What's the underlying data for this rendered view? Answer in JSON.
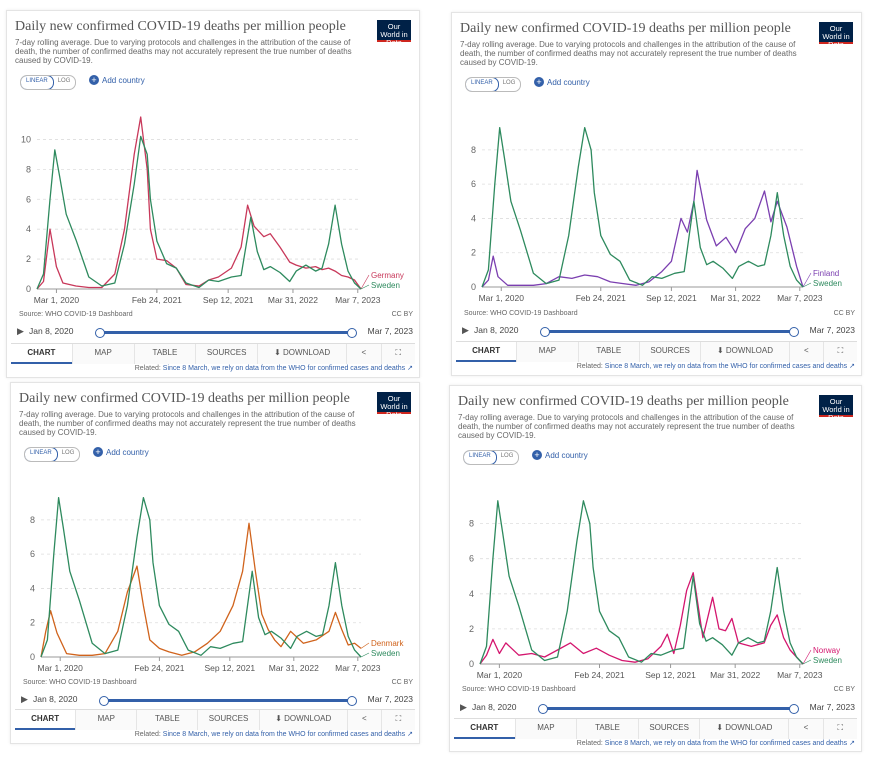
{
  "common": {
    "title": "Daily new confirmed COVID-19 deaths per million people",
    "subtitle": "7-day rolling average. Due to varying protocols and challenges in the attribution of the cause of death, the number of confirmed deaths may not accurately represent the true number of deaths caused by COVID-19.",
    "logo": "Our World in Data",
    "scale_linear": "LINEAR",
    "scale_log": "LOG",
    "add_country": "Add country",
    "source": "Source: WHO COVID-19 Dashboard",
    "license": "CC BY",
    "timeline_start": "Jan 8, 2020",
    "timeline_end": "Mar 7, 2023",
    "tabs": [
      "CHART",
      "MAP",
      "TABLE",
      "SOURCES",
      "DOWNLOAD"
    ],
    "related_label": "Related:",
    "related_link": "Since 8 March, we rely on data from the WHO for confirmed cases and deaths",
    "colors": {
      "sweden": "#2e8a5e",
      "germany": "#c8385a",
      "finland": "#7b3fb0",
      "denmark": "#d0631c",
      "norway": "#d4166e",
      "accent": "#3360a9"
    },
    "icons": {
      "play": "play-icon",
      "download": "download-icon",
      "share": "share-icon",
      "expand": "expand-icon",
      "external": "external-link-icon",
      "plus": "plus-icon"
    }
  },
  "chart_data": [
    {
      "type": "line",
      "title": "Daily new confirmed COVID-19 deaths per million people",
      "x_ticks": [
        "Mar 1, 2020",
        "Feb 24, 2021",
        "Sep 12, 2021",
        "Mar 31, 2022",
        "Mar 7, 2023"
      ],
      "y_ticks": [
        0,
        2,
        4,
        6,
        8,
        10
      ],
      "ylim": [
        0,
        11.5
      ],
      "series": [
        {
          "name": "Sweden",
          "color": "#2e8a5e",
          "x": [
            0,
            0.02,
            0.04,
            0.055,
            0.07,
            0.09,
            0.12,
            0.16,
            0.2,
            0.24,
            0.27,
            0.3,
            0.32,
            0.34,
            0.35,
            0.37,
            0.4,
            0.43,
            0.46,
            0.5,
            0.53,
            0.56,
            0.6,
            0.63,
            0.66,
            0.68,
            0.7,
            0.72,
            0.75,
            0.78,
            0.8,
            0.83,
            0.86,
            0.88,
            0.9,
            0.92,
            0.94,
            0.96,
            0.98,
            1
          ],
          "y": [
            0,
            1,
            6,
            9.3,
            7.5,
            5,
            3.3,
            0.8,
            0.2,
            0.4,
            3,
            7,
            10.2,
            9,
            6,
            3.2,
            1.7,
            1.4,
            0.4,
            0.1,
            0.6,
            0.5,
            0.8,
            0.9,
            4.8,
            2.5,
            1.3,
            1.5,
            1.1,
            0.5,
            1.2,
            1.6,
            1.2,
            1.4,
            3,
            5.6,
            3,
            1.2,
            0.4,
            0
          ]
        },
        {
          "name": "Germany",
          "color": "#c8385a",
          "x": [
            0,
            0.02,
            0.04,
            0.06,
            0.08,
            0.12,
            0.16,
            0.2,
            0.24,
            0.27,
            0.3,
            0.32,
            0.34,
            0.35,
            0.37,
            0.4,
            0.43,
            0.46,
            0.5,
            0.53,
            0.56,
            0.6,
            0.63,
            0.65,
            0.67,
            0.7,
            0.72,
            0.75,
            0.78,
            0.8,
            0.83,
            0.86,
            0.88,
            0.9,
            0.92,
            0.94,
            0.96,
            0.98,
            1
          ],
          "y": [
            0,
            0.5,
            4,
            1.5,
            0.4,
            0.2,
            0.1,
            0.1,
            1,
            4,
            9,
            11.5,
            8,
            4,
            2,
            1.9,
            1.4,
            0.3,
            0.2,
            0.6,
            0.8,
            1.4,
            2.8,
            5.6,
            4.2,
            3.5,
            3.7,
            2.8,
            1.8,
            1.6,
            1.4,
            1.5,
            1.3,
            1.4,
            1.2,
            0.9,
            0.8,
            0.6,
            0
          ]
        }
      ]
    },
    {
      "type": "line",
      "title": "Daily new confirmed COVID-19 deaths per million people",
      "x_ticks": [
        "Mar 1, 2020",
        "Feb 24, 2021",
        "Sep 12, 2021",
        "Mar 31, 2022",
        "Mar 7, 2023"
      ],
      "y_ticks": [
        0,
        2,
        4,
        6,
        8
      ],
      "ylim": [
        0,
        9.8
      ],
      "series": [
        {
          "name": "Sweden",
          "color": "#2e8a5e",
          "x": [
            0,
            0.02,
            0.04,
            0.055,
            0.07,
            0.09,
            0.12,
            0.16,
            0.2,
            0.24,
            0.27,
            0.3,
            0.32,
            0.34,
            0.35,
            0.37,
            0.4,
            0.43,
            0.46,
            0.5,
            0.53,
            0.56,
            0.6,
            0.63,
            0.66,
            0.68,
            0.7,
            0.72,
            0.75,
            0.78,
            0.8,
            0.83,
            0.86,
            0.88,
            0.9,
            0.92,
            0.94,
            0.96,
            0.98,
            1
          ],
          "y": [
            0,
            1,
            6,
            9.3,
            7.5,
            5,
            3.3,
            0.8,
            0.2,
            0.4,
            3,
            7,
            9.3,
            8,
            5.5,
            3,
            1.9,
            1.5,
            0.4,
            0.1,
            0.6,
            0.5,
            0.8,
            0.9,
            5,
            2.3,
            1.3,
            1.5,
            1.1,
            0.5,
            1.2,
            1.5,
            1.2,
            1.3,
            3,
            5.5,
            3,
            1.2,
            0.4,
            0
          ]
        },
        {
          "name": "Finland",
          "color": "#7b3fb0",
          "x": [
            0,
            0.02,
            0.035,
            0.05,
            0.08,
            0.12,
            0.16,
            0.2,
            0.24,
            0.28,
            0.32,
            0.36,
            0.4,
            0.44,
            0.48,
            0.52,
            0.56,
            0.59,
            0.62,
            0.64,
            0.66,
            0.67,
            0.7,
            0.73,
            0.76,
            0.79,
            0.82,
            0.85,
            0.88,
            0.9,
            0.92,
            0.95,
            0.98,
            1
          ],
          "y": [
            0,
            0.4,
            1.8,
            0.6,
            0.1,
            0.1,
            0.1,
            0.2,
            0.6,
            0.5,
            0.7,
            0.6,
            0.3,
            0.2,
            0.1,
            0.3,
            0.9,
            1.5,
            4,
            3.2,
            5,
            6.8,
            3.9,
            2.4,
            2.9,
            2,
            3.4,
            4,
            5.6,
            3.8,
            5,
            3.5,
            1.2,
            0
          ]
        }
      ]
    },
    {
      "type": "line",
      "title": "Daily new confirmed COVID-19 deaths per million people",
      "x_ticks": [
        "Mar 1, 2020",
        "Feb 24, 2021",
        "Sep 12, 2021",
        "Mar 31, 2022",
        "Mar 7, 2023"
      ],
      "y_ticks": [
        0,
        2,
        4,
        6,
        8
      ],
      "ylim": [
        0,
        9.8
      ],
      "series": [
        {
          "name": "Sweden",
          "color": "#2e8a5e",
          "x": [
            0,
            0.02,
            0.04,
            0.055,
            0.07,
            0.09,
            0.12,
            0.16,
            0.2,
            0.24,
            0.27,
            0.3,
            0.32,
            0.34,
            0.35,
            0.37,
            0.4,
            0.43,
            0.46,
            0.5,
            0.53,
            0.56,
            0.6,
            0.63,
            0.66,
            0.68,
            0.7,
            0.72,
            0.75,
            0.78,
            0.8,
            0.83,
            0.86,
            0.88,
            0.9,
            0.92,
            0.94,
            0.96,
            0.98,
            1
          ],
          "y": [
            0,
            1,
            6,
            9.3,
            7.5,
            5,
            3.3,
            0.8,
            0.2,
            0.4,
            3,
            7,
            9.3,
            8,
            5.5,
            3,
            1.9,
            1.5,
            0.4,
            0.1,
            0.6,
            0.5,
            0.8,
            0.9,
            5,
            2.3,
            1.3,
            1.5,
            1.1,
            0.5,
            1.2,
            1.5,
            1.2,
            1.3,
            3,
            5.5,
            3,
            1.2,
            0.4,
            0
          ]
        },
        {
          "name": "Denmark",
          "color": "#d0631c",
          "x": [
            0,
            0.015,
            0.03,
            0.05,
            0.08,
            0.12,
            0.16,
            0.2,
            0.24,
            0.27,
            0.3,
            0.32,
            0.34,
            0.37,
            0.4,
            0.44,
            0.48,
            0.52,
            0.56,
            0.6,
            0.63,
            0.65,
            0.67,
            0.69,
            0.71,
            0.73,
            0.75,
            0.78,
            0.82,
            0.86,
            0.9,
            0.92,
            0.94,
            0.96,
            0.98,
            1
          ],
          "y": [
            0,
            1.5,
            2.7,
            1.4,
            0.2,
            0.1,
            0.1,
            0.2,
            1.5,
            3.8,
            5.3,
            3,
            1,
            0.5,
            0.3,
            0.1,
            0.3,
            0.8,
            1.5,
            3,
            5,
            7.8,
            5,
            2.5,
            1.6,
            1,
            0.6,
            1.5,
            0.8,
            1,
            1.5,
            2.6,
            1.6,
            0.7,
            0.8,
            0.5
          ]
        }
      ]
    },
    {
      "type": "line",
      "title": "Daily new confirmed COVID-19 deaths per million people",
      "x_ticks": [
        "Mar 1, 2020",
        "Feb 24, 2021",
        "Sep 12, 2021",
        "Mar 31, 2022",
        "Mar 7, 2023"
      ],
      "y_ticks": [
        0,
        2,
        4,
        6,
        8
      ],
      "ylim": [
        0,
        9.8
      ],
      "series": [
        {
          "name": "Sweden",
          "color": "#2e8a5e",
          "x": [
            0,
            0.02,
            0.04,
            0.055,
            0.07,
            0.09,
            0.12,
            0.16,
            0.2,
            0.24,
            0.27,
            0.3,
            0.32,
            0.34,
            0.35,
            0.37,
            0.4,
            0.43,
            0.46,
            0.5,
            0.53,
            0.56,
            0.6,
            0.63,
            0.66,
            0.68,
            0.7,
            0.72,
            0.75,
            0.78,
            0.8,
            0.83,
            0.86,
            0.88,
            0.9,
            0.92,
            0.94,
            0.96,
            0.98,
            1
          ],
          "y": [
            0,
            1,
            6,
            9.3,
            7.5,
            5,
            3.3,
            0.8,
            0.2,
            0.4,
            3,
            7,
            9.3,
            8,
            5.5,
            3,
            1.9,
            1.5,
            0.4,
            0.1,
            0.6,
            0.5,
            0.8,
            0.9,
            5,
            2.3,
            1.3,
            1.5,
            1.1,
            0.5,
            1.2,
            1.5,
            1.2,
            1.3,
            3,
            5.5,
            3,
            1.2,
            0.4,
            0
          ]
        },
        {
          "name": "Norway",
          "color": "#d4166e",
          "x": [
            0,
            0.02,
            0.04,
            0.06,
            0.08,
            0.12,
            0.16,
            0.2,
            0.24,
            0.28,
            0.32,
            0.36,
            0.4,
            0.44,
            0.48,
            0.52,
            0.56,
            0.58,
            0.6,
            0.62,
            0.64,
            0.66,
            0.69,
            0.72,
            0.74,
            0.76,
            0.78,
            0.8,
            0.84,
            0.88,
            0.9,
            0.92,
            0.94,
            0.96,
            0.98,
            1
          ],
          "y": [
            0,
            0.5,
            1.4,
            0.6,
            1.2,
            0.5,
            0.6,
            0.4,
            0.8,
            1.2,
            0.6,
            0.9,
            0.5,
            0.2,
            0.1,
            0.3,
            1,
            1.7,
            0.6,
            2.2,
            4.2,
            5.2,
            1.5,
            3.8,
            2,
            1.9,
            2.6,
            1.2,
            1,
            1.2,
            2.2,
            2.8,
            1.5,
            0.8,
            0.4,
            0
          ]
        }
      ]
    }
  ]
}
